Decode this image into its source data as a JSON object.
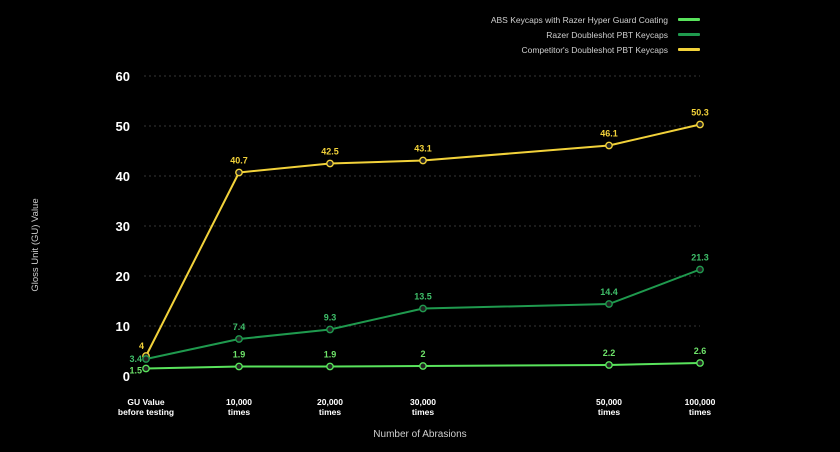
{
  "chart_data": {
    "type": "line",
    "xlabel": "Number of Abrasions",
    "ylabel": "Gloss Unit (GU) Value",
    "ylim": [
      0,
      60
    ],
    "yticks": [
      0,
      10,
      20,
      30,
      40,
      50,
      60
    ],
    "grid": "horizontal dotted",
    "legend_position": "top-right",
    "categories": [
      [
        "GU Value",
        "before testing"
      ],
      [
        "10,000",
        "times"
      ],
      [
        "20,000",
        "times"
      ],
      [
        "30,000",
        "times"
      ],
      [
        "50,000",
        "times"
      ],
      [
        "100,000",
        "times"
      ]
    ],
    "series": [
      {
        "name": "ABS Keycaps with Razer Hyper Guard Coating",
        "color": "#59e35c",
        "values": [
          1.5,
          1.9,
          1.9,
          2,
          2.2,
          2.6
        ],
        "labels": [
          "1.5",
          "1.9",
          "1.9",
          "2",
          "2.2",
          "2.6"
        ]
      },
      {
        "name": "Razer Doubleshot PBT Keycaps",
        "color": "#1f9a4e",
        "values": [
          3.4,
          7.4,
          9.3,
          13.5,
          14.4,
          21.3
        ],
        "labels": [
          "3.4",
          "7.4",
          "9.3",
          "13.5",
          "14.4",
          "21.3"
        ]
      },
      {
        "name": "Competitor's Doubleshot PBT Keycaps",
        "color": "#f2d23a",
        "values": [
          4,
          40.7,
          42.5,
          43.1,
          46.1,
          50.3
        ],
        "labels": [
          "4",
          "40.7",
          "42.5",
          "43.1",
          "46.1",
          "50.3"
        ]
      }
    ],
    "label_colors": [
      "#6ee36a",
      "#3fbf6a",
      "#f2d23a"
    ]
  }
}
